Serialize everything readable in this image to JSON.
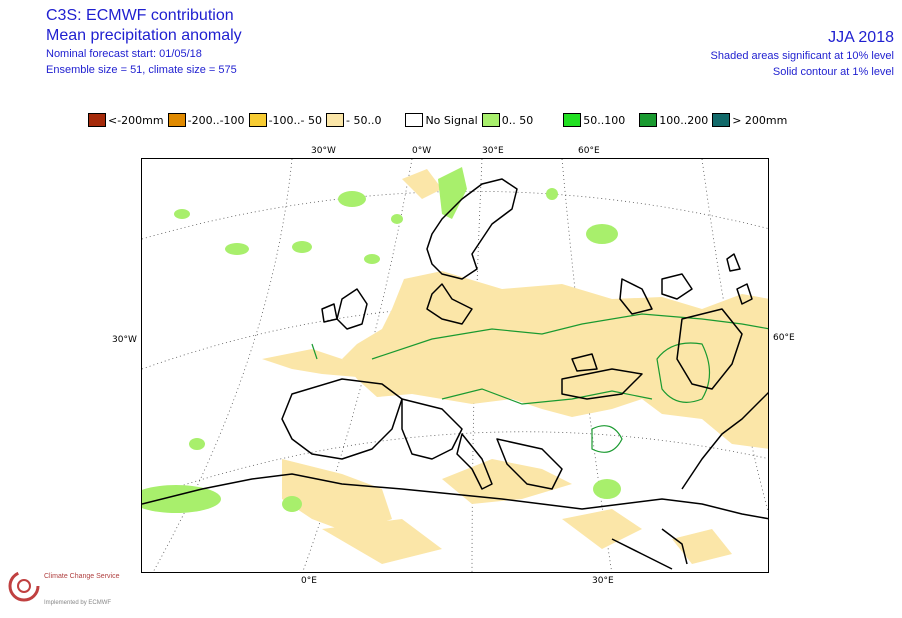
{
  "header": {
    "title": "C3S: ECMWF contribution",
    "subtitle": "Mean precipitation anomaly",
    "forecast_start": "Nominal forecast start: 01/05/18",
    "ensemble": "Ensemble size = 51, climate size = 575",
    "season": "JJA 2018",
    "note_shaded": "Shaded areas significant at 10% level",
    "note_contour": "Solid contour at 1% level"
  },
  "legend": {
    "items": [
      {
        "label": "<-200mm",
        "color": "#a52a0a"
      },
      {
        "label": "-200..-100",
        "color": "#e08a00"
      },
      {
        "label": "-100..- 50",
        "color": "#f7cc33"
      },
      {
        "label": "- 50..0",
        "color": "#fbe6a8"
      },
      {
        "label": "No Signal",
        "color": "#ffffff"
      },
      {
        "label": "0.. 50",
        "color": "#a8ef6c"
      },
      {
        "label": "50..100",
        "color": "#22e022"
      },
      {
        "label": "100..200",
        "color": "#1a9a30"
      },
      {
        "label": "> 200mm",
        "color": "#126a6a"
      }
    ]
  },
  "map": {
    "grid_labels": {
      "top": [
        "30°W",
        "0°W",
        "30°E",
        "60°E"
      ],
      "left": "30°W",
      "right": "60°E",
      "bottom": [
        "0°E",
        "30°E"
      ]
    },
    "colors": {
      "dry": "#fbe6a8",
      "wet": "#a8ef6c",
      "contour": "#1a9a30",
      "coast": "#000000",
      "grid": "#555555"
    }
  },
  "logo": {
    "name": "Climate Change Service",
    "sub": "Implemented by ECMWF"
  }
}
